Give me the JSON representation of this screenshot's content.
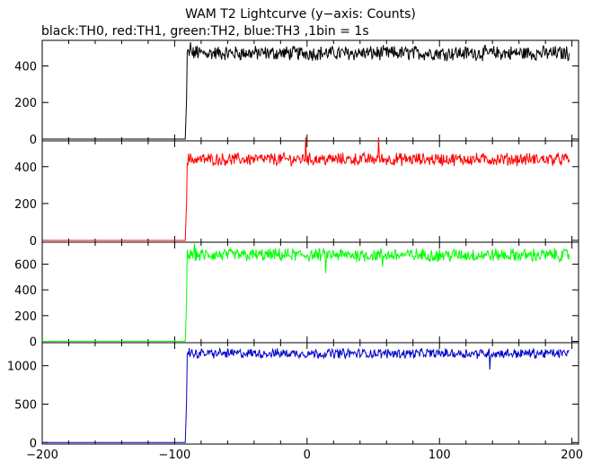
{
  "chart_data": {
    "type": "line",
    "title": "WAM T2 Lightcurve (y−axis: Counts)",
    "subtitle": "black:TH0, red:TH1, green:TH2, blue:TH3 ,1bin = 1s",
    "xlim": [
      -200,
      205
    ],
    "x_ticks": [
      -200,
      -100,
      0,
      100,
      200
    ],
    "x_tick_labels": [
      "−200",
      "−100",
      "0",
      "100",
      "200"
    ],
    "grid": false,
    "legend": "none",
    "panels": [
      {
        "name": "TH0",
        "color": "#000000",
        "ylim": [
          -10,
          540
        ],
        "y_ticks": [
          0,
          200,
          400
        ],
        "rise_x": -92,
        "baseline": 0,
        "level": 470,
        "noise": 35,
        "spikes": [
          [
            -88,
            530
          ],
          [
            -83,
            510
          ]
        ]
      },
      {
        "name": "TH1",
        "color": "#ff0000",
        "ylim": [
          -10,
          540
        ],
        "y_ticks": [
          0,
          200,
          400
        ],
        "rise_x": -92,
        "baseline": 0,
        "level": 440,
        "noise": 30,
        "spikes": [
          [
            -1,
            560
          ],
          [
            54,
            560
          ]
        ]
      },
      {
        "name": "TH2",
        "color": "#00ff00",
        "ylim": [
          -10,
          770
        ],
        "y_ticks": [
          0,
          200,
          400,
          600
        ],
        "rise_x": -92,
        "baseline": 0,
        "level": 670,
        "noise": 45,
        "spikes": [
          [
            14,
            530
          ],
          [
            57,
            580
          ],
          [
            -85,
            760
          ]
        ]
      },
      {
        "name": "TH3",
        "color": "#0000cc",
        "ylim": [
          -20,
          1300
        ],
        "y_ticks": [
          0,
          500,
          1000
        ],
        "rise_x": -92,
        "baseline": 0,
        "level": 1160,
        "noise": 55,
        "spikes": [
          [
            138,
            950
          ],
          [
            -89,
            1230
          ]
        ]
      }
    ]
  }
}
